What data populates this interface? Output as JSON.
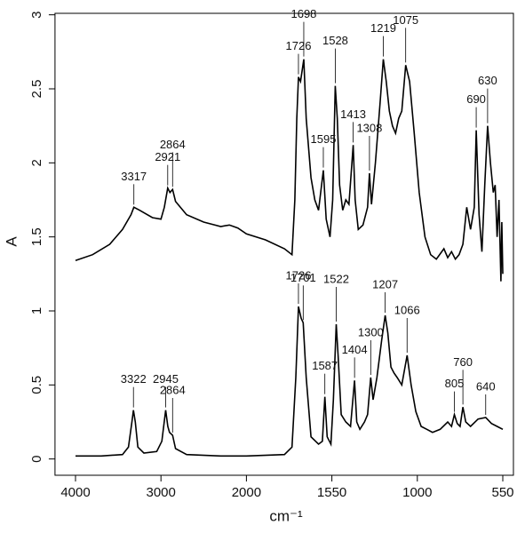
{
  "chart_data": {
    "type": "line",
    "x_label": "cm⁻¹",
    "y_label": "A",
    "xlim": [
      4240,
      494
    ],
    "xticks": [
      4000,
      3000,
      2000,
      1550,
      1000,
      550
    ],
    "ylim": [
      -0.11,
      3.01
    ],
    "yticks": [
      0,
      0.5,
      1,
      1.5,
      2,
      2.5,
      3
    ],
    "series": [
      {
        "color": "#000000",
        "x": [
          4000,
          3800,
          3600,
          3450,
          3350,
          3317,
          3250,
          3100,
          3000,
          2960,
          2921,
          2895,
          2864,
          2830,
          2700,
          2500,
          2300,
          2200,
          2100,
          2000,
          1900,
          1800,
          1760,
          1745,
          1735,
          1726,
          1715,
          1698,
          1685,
          1660,
          1640,
          1620,
          1595,
          1580,
          1560,
          1545,
          1528,
          1515,
          1500,
          1480,
          1460,
          1440,
          1413,
          1400,
          1380,
          1350,
          1320,
          1308,
          1295,
          1270,
          1240,
          1219,
          1200,
          1180,
          1160,
          1140,
          1120,
          1100,
          1075,
          1050,
          1020,
          990,
          960,
          930,
          900,
          860,
          840,
          820,
          800,
          780,
          760,
          740,
          720,
          700,
          690,
          675,
          660,
          645,
          630,
          615,
          600,
          590,
          580,
          570,
          560,
          555,
          550
        ],
        "values": [
          1.34,
          1.38,
          1.45,
          1.55,
          1.65,
          1.7,
          1.68,
          1.63,
          1.62,
          1.7,
          1.83,
          1.8,
          1.82,
          1.74,
          1.65,
          1.6,
          1.57,
          1.58,
          1.56,
          1.52,
          1.48,
          1.42,
          1.38,
          1.75,
          2.3,
          2.58,
          2.55,
          2.7,
          2.3,
          1.9,
          1.75,
          1.68,
          1.95,
          1.62,
          1.5,
          1.75,
          2.52,
          2.3,
          1.85,
          1.68,
          1.75,
          1.72,
          2.12,
          1.75,
          1.55,
          1.58,
          1.7,
          1.93,
          1.72,
          2.0,
          2.4,
          2.7,
          2.55,
          2.35,
          2.25,
          2.2,
          2.3,
          2.35,
          2.66,
          2.55,
          2.2,
          1.8,
          1.5,
          1.38,
          1.35,
          1.42,
          1.36,
          1.4,
          1.35,
          1.38,
          1.45,
          1.7,
          1.55,
          1.7,
          2.22,
          1.65,
          1.4,
          1.85,
          2.25,
          2.0,
          1.8,
          1.85,
          1.5,
          1.75,
          1.2,
          1.6,
          1.25
        ],
        "peaks": [
          3317,
          2921,
          2864,
          1726,
          1698,
          1595,
          1528,
          1413,
          1308,
          1219,
          1075,
          690,
          630
        ]
      },
      {
        "color": "#000000",
        "x": [
          4000,
          3700,
          3450,
          3380,
          3340,
          3322,
          3300,
          3270,
          3200,
          3050,
          2990,
          2945,
          2920,
          2900,
          2864,
          2830,
          2700,
          2300,
          2000,
          1800,
          1760,
          1740,
          1726,
          1712,
          1701,
          1685,
          1660,
          1620,
          1600,
          1587,
          1575,
          1555,
          1540,
          1522,
          1510,
          1490,
          1460,
          1430,
          1404,
          1390,
          1370,
          1340,
          1320,
          1300,
          1285,
          1260,
          1230,
          1207,
          1190,
          1170,
          1150,
          1130,
          1100,
          1066,
          1040,
          1010,
          980,
          950,
          920,
          880,
          840,
          820,
          805,
          790,
          775,
          760,
          745,
          720,
          680,
          640,
          610,
          580,
          550
        ],
        "values": [
          0.02,
          0.02,
          0.03,
          0.08,
          0.25,
          0.33,
          0.25,
          0.08,
          0.04,
          0.05,
          0.12,
          0.33,
          0.22,
          0.18,
          0.16,
          0.07,
          0.03,
          0.02,
          0.02,
          0.03,
          0.08,
          0.55,
          1.03,
          0.95,
          0.92,
          0.55,
          0.15,
          0.1,
          0.12,
          0.42,
          0.15,
          0.1,
          0.4,
          0.91,
          0.7,
          0.3,
          0.25,
          0.22,
          0.53,
          0.25,
          0.2,
          0.25,
          0.3,
          0.55,
          0.4,
          0.55,
          0.8,
          0.97,
          0.85,
          0.62,
          0.58,
          0.55,
          0.5,
          0.7,
          0.5,
          0.32,
          0.22,
          0.2,
          0.18,
          0.2,
          0.25,
          0.22,
          0.3,
          0.24,
          0.22,
          0.35,
          0.25,
          0.22,
          0.27,
          0.28,
          0.24,
          0.22,
          0.2
        ],
        "peaks": [
          3322,
          2945,
          2864,
          1726,
          1701,
          1587,
          1522,
          1404,
          1300,
          1207,
          1066,
          805,
          760,
          640
        ]
      }
    ]
  }
}
